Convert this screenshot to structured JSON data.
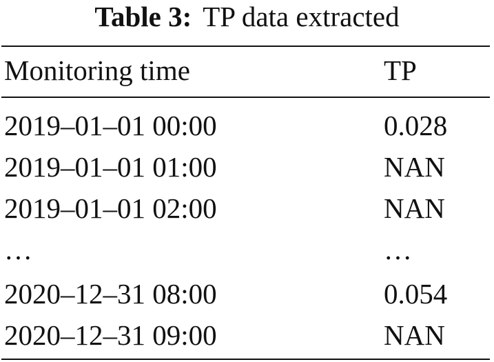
{
  "table": {
    "caption_label": "Table 3:",
    "caption_text": "TP data extracted",
    "columns": [
      "Monitoring time",
      "TP"
    ],
    "rows": [
      [
        "2019–01–01 00:00",
        "0.028"
      ],
      [
        "2019–01–01 01:00",
        "NAN"
      ],
      [
        "2019–01–01 02:00",
        "NAN"
      ],
      [
        "…",
        "…"
      ],
      [
        "2020–12–31 08:00",
        "0.054"
      ],
      [
        "2020–12–31 09:00",
        "NAN"
      ]
    ]
  }
}
